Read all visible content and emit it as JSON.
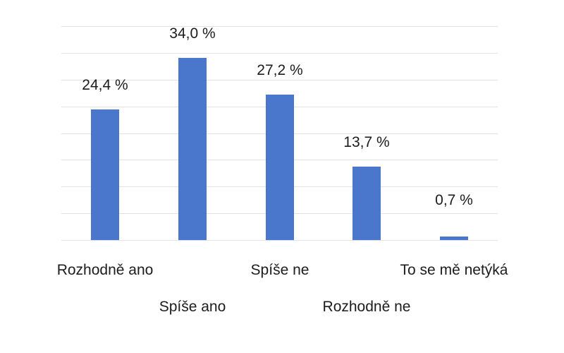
{
  "chart_data": {
    "type": "bar",
    "title": "",
    "xlabel": "",
    "ylabel": "",
    "categories": [
      "Rozhodně ano",
      "Spíše ano",
      "Spíše ne",
      "Rozhodně ne",
      "To se mě netýká"
    ],
    "values": [
      24.4,
      34.0,
      27.2,
      13.7,
      0.7
    ],
    "value_labels": [
      "24,4 %",
      "34,0 %",
      "27,2 %",
      "13,7 %",
      "0,7 %"
    ],
    "ylim": [
      0,
      40
    ],
    "gridline_step": 5,
    "grid": true,
    "legend": "none",
    "colors": {
      "bar": "#4a77cb",
      "gridline": "#e2e2e2",
      "text": "#1c1c1c",
      "background": "#ffffff"
    }
  }
}
